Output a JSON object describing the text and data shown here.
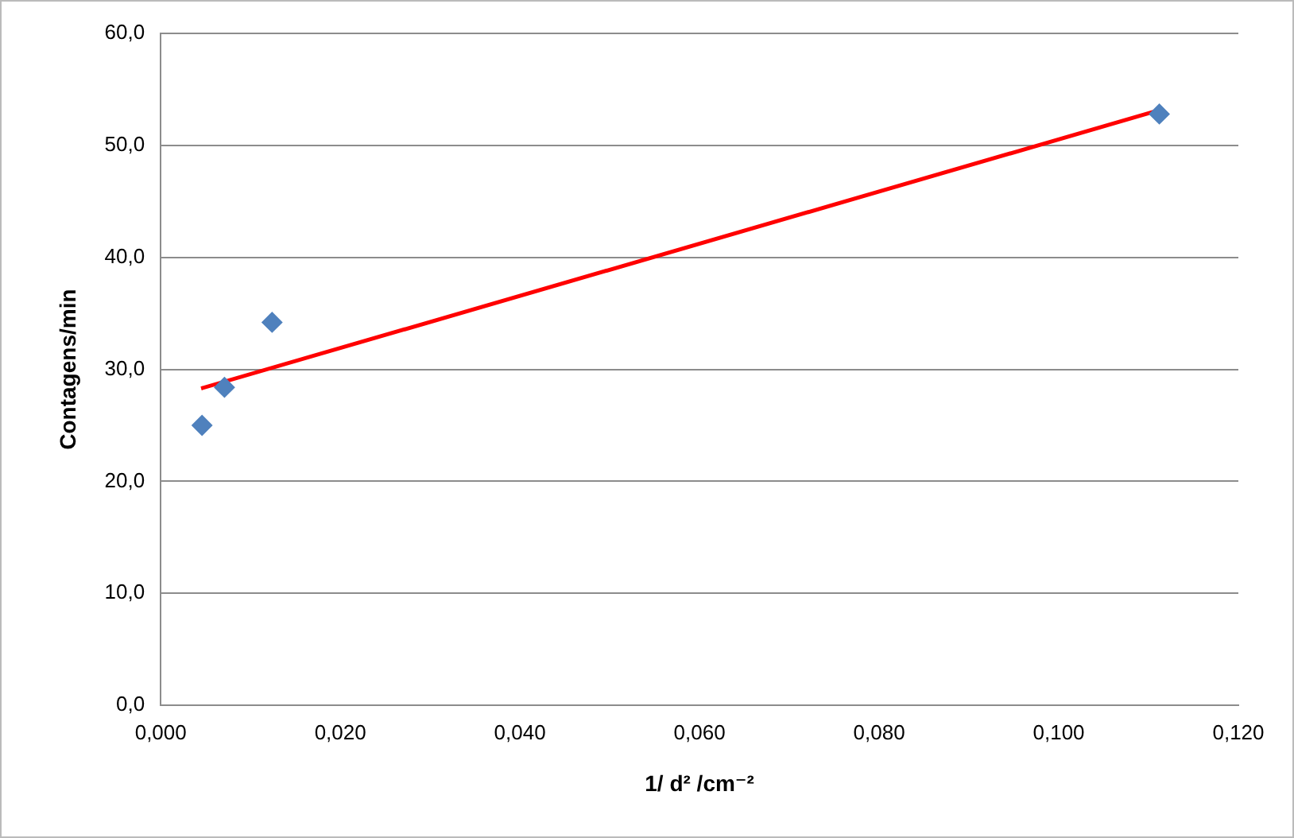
{
  "chart_data": {
    "type": "scatter",
    "xlabel": "1/ d² /cm⁻²",
    "ylabel": "Contagens/min",
    "series": [
      {
        "color": "#4f81bd",
        "x": [
          0.0046,
          0.0071,
          0.0124,
          0.1112
        ],
        "values": [
          25.0,
          28.4,
          34.2,
          52.8
        ],
        "marker": "diamond"
      },
      {
        "type": "line",
        "color": "#ff0000",
        "x": [
          0.0045,
          0.111
        ],
        "values": [
          28.3,
          53.1
        ],
        "marker": "none",
        "line_style": "solid"
      }
    ],
    "xlim": [
      0,
      0.12
    ],
    "xticks": [
      {
        "value": 0,
        "label": "0,000"
      },
      {
        "value": 0.02,
        "label": "0,020"
      },
      {
        "value": 0.04,
        "label": "0,040"
      },
      {
        "value": 0.06,
        "label": "0,060"
      },
      {
        "value": 0.08,
        "label": "0,080"
      },
      {
        "value": 0.1,
        "label": "0,100"
      },
      {
        "value": 0.12,
        "label": "0,120"
      }
    ],
    "ylim": [
      0,
      60
    ],
    "yticks": [
      {
        "value": 0,
        "label": "0,0"
      },
      {
        "value": 10,
        "label": "10,0"
      },
      {
        "value": 20,
        "label": "20,0"
      },
      {
        "value": 30,
        "label": "30,0"
      },
      {
        "value": 40,
        "label": "40,0"
      },
      {
        "value": 50,
        "label": "50,0"
      },
      {
        "value": 60,
        "label": "60,0"
      }
    ],
    "grid": "y",
    "legend": false
  }
}
